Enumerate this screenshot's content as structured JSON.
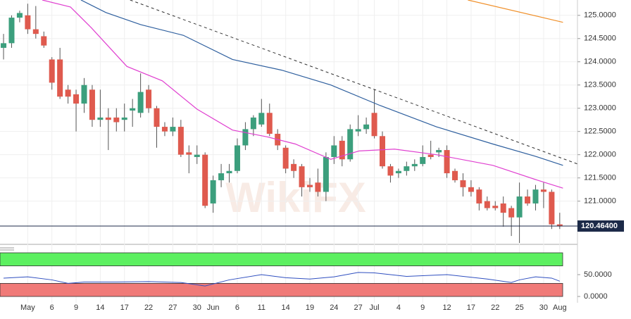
{
  "chart_data": {
    "type": "candlestick",
    "watermark": "WikiFX",
    "up_color": "#3c9f7d",
    "down_color": "#df5a4e",
    "wick_color": "#555555",
    "grid": true,
    "open": [
      124.3,
      124.4,
      124.95,
      125.0,
      124.7,
      124.55,
      124.05,
      124.05,
      123.4,
      123.3,
      123.1,
      123.4,
      122.75,
      122.8,
      122.8,
      122.75,
      122.95,
      122.9,
      123.4,
      123.0,
      122.6,
      122.5,
      122.6,
      122.05,
      121.95,
      122.0,
      120.95,
      121.45,
      121.6,
      121.65,
      122.2,
      122.55,
      122.65,
      122.9,
      122.45,
      122.15,
      121.8,
      121.75,
      121.35,
      121.4,
      121.2,
      121.95,
      122.3,
      121.9,
      122.5,
      122.55,
      122.9,
      122.4,
      121.75,
      121.6,
      121.65,
      121.75,
      121.8,
      122.0,
      122.05,
      122.1,
      121.65,
      121.45,
      121.3,
      121.25,
      121.0,
      120.9,
      120.95,
      120.85,
      120.65,
      121.1,
      120.95,
      121.25,
      121.2,
      120.5
    ],
    "high": [
      124.6,
      125.0,
      125.1,
      125.25,
      125.2,
      124.65,
      124.1,
      124.3,
      123.5,
      123.4,
      123.65,
      123.5,
      123.4,
      123.0,
      123.0,
      123.1,
      123.2,
      123.75,
      123.5,
      123.05,
      122.7,
      122.8,
      122.75,
      122.2,
      122.2,
      122.05,
      121.55,
      121.8,
      121.8,
      122.35,
      122.7,
      122.85,
      123.2,
      123.1,
      122.55,
      122.2,
      121.9,
      121.8,
      121.5,
      121.7,
      122.05,
      122.4,
      122.4,
      122.65,
      122.85,
      122.8,
      123.4,
      122.5,
      121.8,
      121.7,
      121.85,
      121.9,
      122.2,
      122.3,
      122.15,
      122.2,
      121.7,
      121.6,
      121.45,
      121.3,
      121.1,
      121.0,
      121.1,
      120.9,
      121.4,
      121.25,
      121.35,
      121.4,
      121.25,
      120.75
    ],
    "low": [
      124.05,
      124.3,
      124.85,
      124.6,
      124.5,
      124.3,
      123.4,
      123.2,
      123.1,
      122.5,
      122.9,
      122.6,
      122.6,
      122.1,
      122.5,
      122.5,
      122.6,
      122.8,
      122.9,
      122.15,
      122.4,
      122.4,
      121.95,
      121.6,
      121.8,
      120.85,
      120.75,
      121.3,
      121.4,
      121.6,
      122.1,
      122.4,
      122.6,
      122.4,
      122.1,
      121.6,
      121.5,
      121.1,
      121.2,
      121.1,
      121.0,
      121.8,
      121.75,
      121.85,
      122.4,
      122.45,
      122.35,
      121.7,
      121.4,
      121.5,
      121.55,
      121.65,
      121.75,
      121.9,
      121.95,
      121.5,
      121.4,
      121.1,
      121.1,
      120.8,
      120.8,
      120.8,
      120.45,
      120.25,
      120.1,
      120.9,
      120.8,
      120.85,
      120.4,
      120.4
    ],
    "close": [
      124.4,
      124.95,
      125.05,
      124.7,
      124.6,
      124.35,
      123.55,
      123.25,
      123.25,
      123.1,
      123.5,
      122.75,
      122.8,
      122.75,
      122.7,
      122.8,
      123.0,
      123.35,
      123.0,
      122.6,
      122.5,
      122.6,
      122.0,
      122.0,
      122.0,
      120.9,
      121.45,
      121.6,
      121.65,
      122.2,
      122.55,
      122.8,
      122.9,
      122.45,
      122.2,
      121.7,
      121.65,
      121.3,
      121.3,
      121.2,
      121.95,
      122.2,
      121.9,
      122.55,
      122.55,
      122.65,
      122.4,
      121.75,
      121.55,
      121.65,
      121.75,
      121.8,
      121.95,
      121.95,
      122.1,
      121.6,
      121.45,
      121.3,
      121.2,
      120.95,
      120.85,
      120.85,
      120.75,
      120.65,
      121.1,
      120.95,
      121.25,
      121.2,
      120.5,
      120.46
    ],
    "series": [
      {
        "color": "#2e5f9e",
        "x": [
          9.6,
          12.7,
          17.0,
          22.3,
          28.4,
          34.5,
          40.6,
          46.7,
          53.7,
          60.7,
          65.9,
          69.4
        ],
        "values": [
          125.33,
          125.06,
          124.8,
          124.57,
          124.05,
          123.82,
          123.5,
          123.06,
          122.6,
          122.23,
          121.97,
          121.77
        ]
      },
      {
        "color": "#e040d0",
        "x": [
          4.8,
          8.3,
          10.9,
          15.3,
          19.7,
          24.0,
          28.4,
          32.8,
          36.2,
          40.6,
          44.1,
          48.5,
          53.7,
          60.7,
          65.9,
          69.4
        ],
        "values": [
          125.33,
          125.18,
          124.73,
          123.9,
          123.59,
          122.98,
          122.53,
          122.38,
          122.23,
          121.9,
          122.08,
          122.12,
          122.0,
          121.77,
          121.47,
          121.28
        ]
      },
      {
        "color": "#f0902a",
        "x": [
          57.6,
          69.4
        ],
        "values": [
          125.33,
          124.85
        ]
      }
    ],
    "trendline": {
      "color": "#333333",
      "x": [
        15.7,
        71.2
      ],
      "values": [
        125.33,
        121.8
      ]
    },
    "last_price": {
      "value": 120.464,
      "label": "120.46400",
      "color": "#1c2a48"
    },
    "xlim": [
      -0.44,
      71.2
    ],
    "ylim": [
      120.1,
      125.33
    ],
    "yticks": [
      {
        "value": 125,
        "label": "125.0000"
      },
      {
        "value": 124.5,
        "label": "124.5000"
      },
      {
        "value": 124,
        "label": "124.0000"
      },
      {
        "value": 123.5,
        "label": "123.5000"
      },
      {
        "value": 123,
        "label": "123.0000"
      },
      {
        "value": 122.5,
        "label": "122.5000"
      },
      {
        "value": 122,
        "label": "122.0000"
      },
      {
        "value": 121.5,
        "label": "121.5000"
      },
      {
        "value": 121,
        "label": "121.0000"
      }
    ],
    "xticks": [
      {
        "value": 3,
        "label": "May"
      },
      {
        "value": 6,
        "label": "6"
      },
      {
        "value": 9,
        "label": "9"
      },
      {
        "value": 12,
        "label": "14"
      },
      {
        "value": 15,
        "label": "17"
      },
      {
        "value": 18,
        "label": "22"
      },
      {
        "value": 21,
        "label": "27"
      },
      {
        "value": 24,
        "label": "30"
      },
      {
        "value": 26,
        "label": "Jun"
      },
      {
        "value": 29,
        "label": "6"
      },
      {
        "value": 32,
        "label": "11"
      },
      {
        "value": 35,
        "label": "14"
      },
      {
        "value": 38,
        "label": "19"
      },
      {
        "value": 41,
        "label": "24"
      },
      {
        "value": 44,
        "label": "27"
      },
      {
        "value": 46,
        "label": "Jul"
      },
      {
        "value": 49,
        "label": "4"
      },
      {
        "value": 52,
        "label": "9"
      },
      {
        "value": 55,
        "label": "12"
      },
      {
        "value": 58,
        "label": "17"
      },
      {
        "value": 61,
        "label": "22"
      },
      {
        "value": 64,
        "label": "25"
      },
      {
        "value": 67,
        "label": "30"
      },
      {
        "value": 69,
        "label": "Aug"
      }
    ],
    "indicator": {
      "color": "#2f4fc0",
      "x": [
        0,
        3,
        6,
        8,
        10,
        14,
        18,
        22,
        25,
        28,
        32,
        35,
        38,
        41,
        44,
        46,
        50,
        55,
        60,
        63,
        64,
        66,
        68,
        69
      ],
      "values": [
        42,
        45,
        38,
        30,
        33,
        33,
        34,
        32,
        24,
        38,
        50,
        43,
        40,
        45,
        55,
        54,
        46,
        50,
        40,
        32,
        38,
        45,
        42,
        35
      ],
      "ylim": [
        0,
        100
      ],
      "yticks": [
        {
          "value": 50,
          "label": "50.0000"
        },
        {
          "value": 0,
          "label": "0.0000"
        }
      ],
      "zones": [
        {
          "from": 70,
          "to": 100,
          "color": "#5cf060"
        },
        {
          "from": 0,
          "to": 30,
          "color": "#f07a78"
        }
      ]
    }
  }
}
